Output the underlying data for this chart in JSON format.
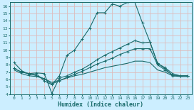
{
  "title": "",
  "xlabel": "Humidex (Indice chaleur)",
  "bg_color": "#cceeff",
  "grid_color": "#ddbbbb",
  "line_color": "#1a6b6b",
  "xlim": [
    -0.5,
    23.5
  ],
  "ylim": [
    4,
    16.5
  ],
  "x_ticks": [
    0,
    1,
    2,
    3,
    4,
    5,
    6,
    7,
    8,
    9,
    10,
    11,
    12,
    13,
    14,
    15,
    16,
    17,
    18,
    19,
    20,
    21,
    22,
    23
  ],
  "y_ticks": [
    4,
    5,
    6,
    7,
    8,
    9,
    10,
    11,
    12,
    13,
    14,
    15,
    16
  ],
  "line1_x": [
    0,
    1,
    2,
    3,
    4,
    5,
    6,
    7,
    8,
    9,
    10,
    11,
    12,
    13,
    14,
    15,
    16,
    17,
    18,
    19,
    20,
    21,
    22,
    23
  ],
  "line1_y": [
    8.3,
    7.2,
    6.7,
    6.7,
    5.8,
    5.3,
    6.5,
    9.3,
    10.0,
    11.5,
    13.0,
    15.1,
    15.1,
    16.3,
    16.0,
    16.5,
    16.5,
    13.7,
    11.1,
    8.2,
    7.5,
    6.5,
    6.5,
    6.5
  ],
  "line2_x": [
    0,
    1,
    2,
    3,
    4,
    5,
    6,
    7,
    8,
    9,
    10,
    11,
    12,
    13,
    14,
    15,
    16,
    17,
    18,
    19,
    20,
    21,
    22,
    23
  ],
  "line2_y": [
    7.5,
    7.0,
    6.8,
    6.9,
    6.8,
    4.1,
    6.2,
    6.5,
    7.0,
    7.4,
    8.0,
    8.7,
    9.3,
    9.8,
    10.3,
    10.8,
    11.3,
    11.0,
    11.1,
    8.2,
    7.6,
    6.8,
    6.5,
    6.5
  ],
  "line3_x": [
    0,
    1,
    2,
    3,
    4,
    5,
    6,
    7,
    8,
    9,
    10,
    11,
    12,
    13,
    14,
    15,
    16,
    17,
    18,
    19,
    20,
    21,
    22,
    23
  ],
  "line3_y": [
    7.5,
    7.0,
    6.8,
    6.5,
    6.1,
    5.4,
    5.8,
    6.3,
    6.7,
    7.1,
    7.6,
    8.1,
    8.5,
    8.9,
    9.4,
    9.8,
    10.2,
    10.2,
    10.2,
    8.0,
    7.3,
    6.6,
    6.5,
    6.5
  ],
  "line4_x": [
    0,
    1,
    2,
    3,
    4,
    5,
    6,
    7,
    8,
    9,
    10,
    11,
    12,
    13,
    14,
    15,
    16,
    17,
    18,
    19,
    20,
    21,
    22,
    23
  ],
  "line4_y": [
    7.3,
    6.8,
    6.5,
    6.4,
    6.1,
    5.6,
    5.9,
    6.2,
    6.5,
    6.7,
    7.0,
    7.3,
    7.6,
    7.8,
    8.0,
    8.2,
    8.5,
    8.5,
    8.3,
    7.3,
    7.0,
    6.5,
    6.4,
    6.4
  ]
}
